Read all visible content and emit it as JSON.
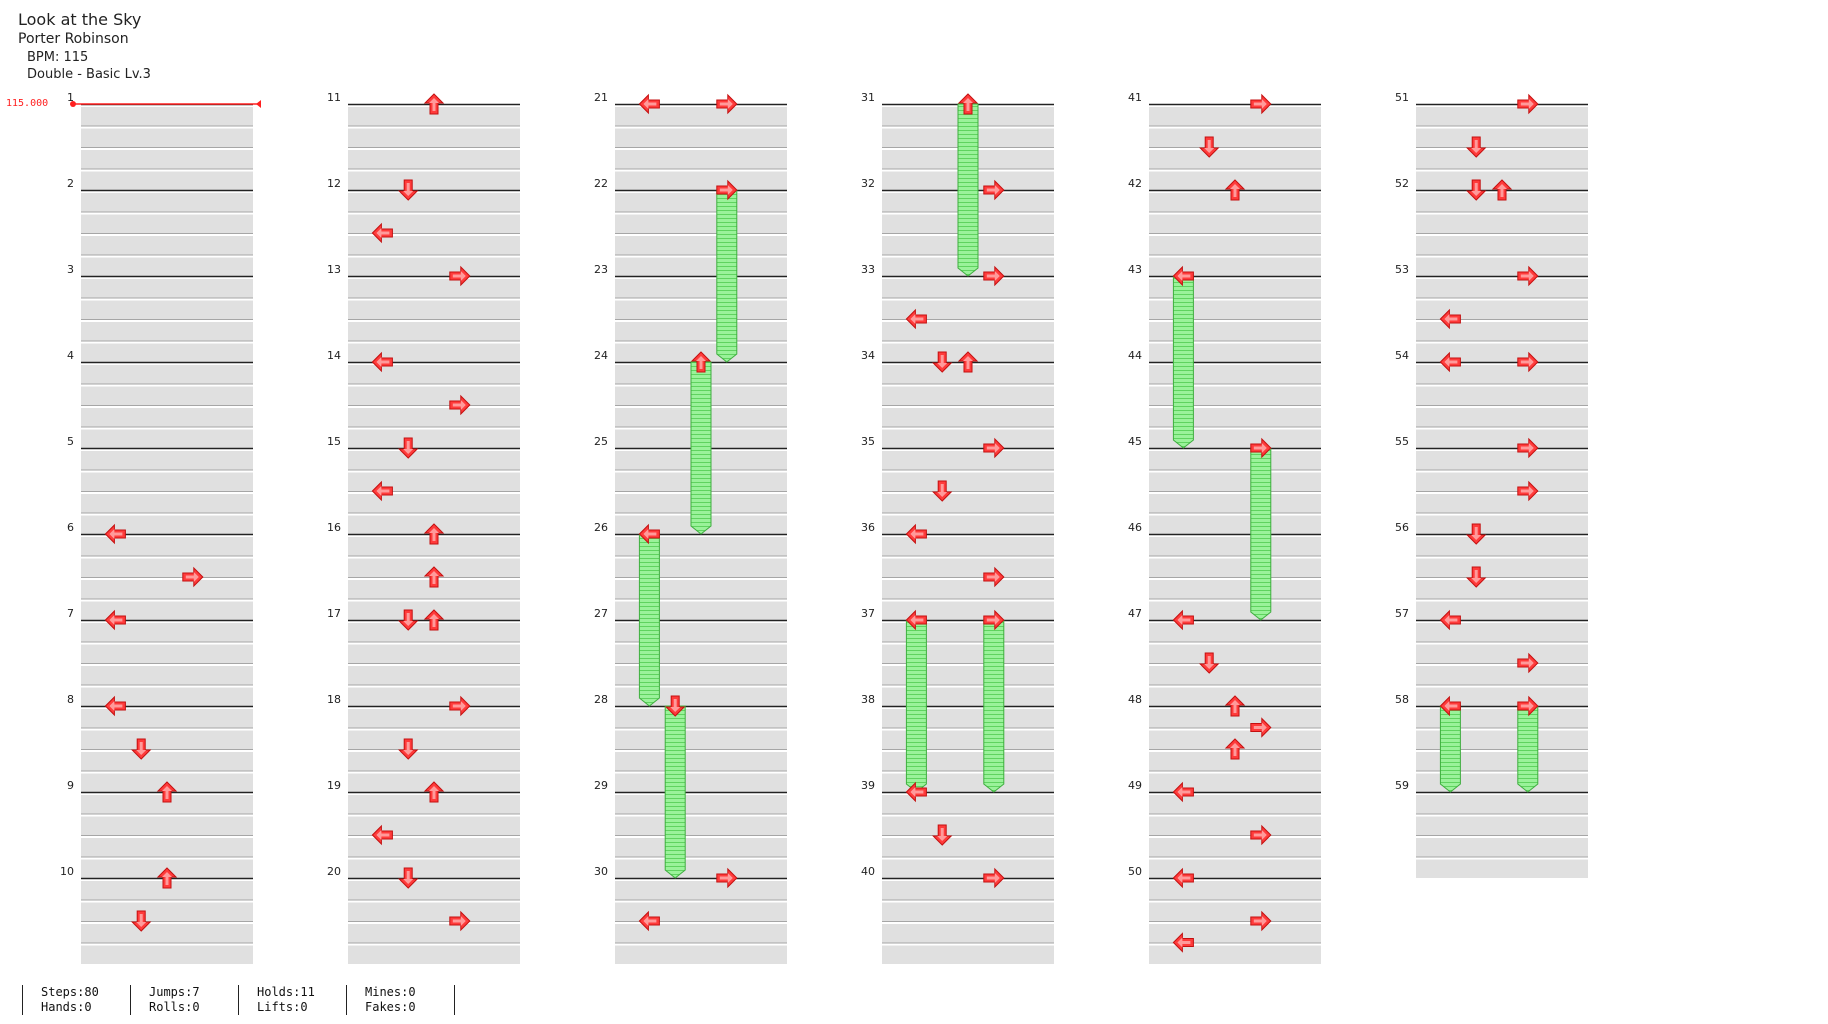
{
  "song": {
    "title": "Look at the Sky",
    "artist": "Porter Robinson",
    "bpm_text": "BPM: 115",
    "chart_text": "Double - Basic Lv.3"
  },
  "bpm_marker": {
    "value_text": "115.000",
    "measure": 1
  },
  "colors": {
    "arrow": "#ff3b3b",
    "arrow_light": "#ff9a9a",
    "hold_fill": "#9af29a",
    "hold_stripe": "#5fd35f",
    "hold_edge": "#3fae3f",
    "band": "#e0e0e0",
    "bpm_line": "#ff2020"
  },
  "notes": [
    [
      11,
      0,
      "up",
      null
    ],
    [
      12,
      0,
      "down",
      null
    ],
    [
      12,
      2,
      "left",
      null
    ],
    [
      13,
      0,
      "right",
      null
    ],
    [
      14,
      0,
      "left",
      null
    ],
    [
      14,
      2,
      "right",
      null
    ],
    [
      15,
      0,
      "down",
      null
    ],
    [
      15,
      2,
      "left",
      null
    ],
    [
      16,
      0,
      "up",
      null
    ],
    [
      16,
      2,
      "up",
      null
    ],
    [
      17,
      0,
      "down",
      null
    ],
    [
      17,
      0,
      "up",
      null
    ],
    [
      18,
      0,
      "right",
      null
    ],
    [
      18,
      2,
      "down",
      null
    ],
    [
      19,
      0,
      "up",
      null
    ],
    [
      19,
      2,
      "left",
      null
    ],
    [
      20,
      0,
      "down",
      null
    ],
    [
      20,
      2,
      "right",
      null
    ],
    [
      6,
      0,
      "left",
      null
    ],
    [
      6,
      2,
      "right",
      null
    ],
    [
      7,
      0,
      "left",
      null
    ],
    [
      8,
      0,
      "left",
      null
    ],
    [
      8,
      2,
      "down",
      null
    ],
    [
      9,
      0,
      "up",
      null
    ],
    [
      10,
      0,
      "up",
      null
    ],
    [
      10,
      2,
      "down",
      null
    ],
    [
      21,
      0,
      "right",
      null
    ],
    [
      21,
      0,
      "left",
      null
    ],
    [
      22,
      0,
      "right",
      8
    ],
    [
      24,
      0,
      "up",
      8
    ],
    [
      26,
      0,
      "left",
      8
    ],
    [
      28,
      0,
      "down",
      8
    ],
    [
      30,
      0,
      "right",
      null
    ],
    [
      30,
      2,
      "left",
      null
    ],
    [
      31,
      0,
      "up",
      8
    ],
    [
      32,
      0,
      "right",
      null
    ],
    [
      33,
      0,
      "right",
      null
    ],
    [
      33,
      2,
      "left",
      null
    ],
    [
      34,
      0,
      "down",
      null
    ],
    [
      34,
      0,
      "up",
      null
    ],
    [
      35,
      0,
      "right",
      null
    ],
    [
      35,
      2,
      "down",
      null
    ],
    [
      36,
      0,
      "left",
      null
    ],
    [
      36,
      2,
      "right",
      null
    ],
    [
      37,
      0,
      "right",
      8
    ],
    [
      37,
      0,
      "left",
      8
    ],
    [
      39,
      0,
      "left",
      null
    ],
    [
      39,
      2,
      "down",
      null
    ],
    [
      40,
      0,
      "right",
      null
    ],
    [
      41,
      0,
      "right",
      null
    ],
    [
      41,
      2,
      "down",
      null
    ],
    [
      42,
      0,
      "up",
      null
    ],
    [
      43,
      0,
      "left",
      8
    ],
    [
      45,
      0,
      "right",
      8
    ],
    [
      47,
      0,
      "left",
      null
    ],
    [
      47,
      2,
      "down",
      null
    ],
    [
      48,
      0,
      "up",
      null
    ],
    [
      48,
      1,
      "right",
      null
    ],
    [
      48,
      2,
      "up",
      null
    ],
    [
      49,
      0,
      "left",
      null
    ],
    [
      49,
      2,
      "right",
      null
    ],
    [
      50,
      0,
      "left",
      null
    ],
    [
      50,
      2,
      "right",
      null
    ],
    [
      50,
      3,
      "left",
      null
    ],
    [
      51,
      0,
      "right",
      null
    ],
    [
      51,
      2,
      "down",
      null
    ],
    [
      52,
      0,
      "down",
      null
    ],
    [
      52,
      0,
      "up",
      null
    ],
    [
      53,
      0,
      "right",
      null
    ],
    [
      53,
      2,
      "left",
      null
    ],
    [
      54,
      0,
      "left",
      null
    ],
    [
      54,
      0,
      "right",
      null
    ],
    [
      55,
      0,
      "right",
      null
    ],
    [
      55,
      2,
      "right",
      null
    ],
    [
      56,
      0,
      "down",
      null
    ],
    [
      56,
      2,
      "down",
      null
    ],
    [
      57,
      0,
      "left",
      null
    ],
    [
      57,
      2,
      "right",
      null
    ],
    [
      58,
      0,
      "right",
      4
    ],
    [
      58,
      0,
      "left",
      4
    ]
  ],
  "stats": [
    {
      "line1": "Steps:80",
      "line2": "Hands:0"
    },
    {
      "line1": "Jumps:7",
      "line2": "Rolls:0"
    },
    {
      "line1": "Holds:11",
      "line2": "Lifts:0"
    },
    {
      "line1": "Mines:0",
      "line2": "Fakes:0"
    }
  ]
}
